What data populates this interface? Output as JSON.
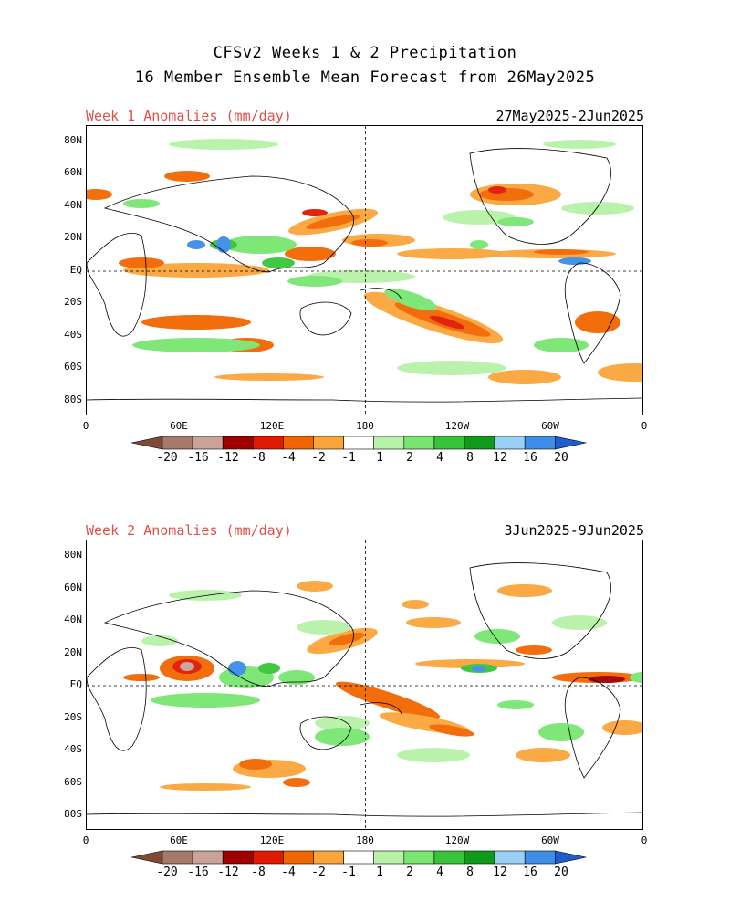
{
  "header": {
    "title_line1": "CFSv2 Weeks 1 & 2 Precipitation",
    "title_line2": "16 Member Ensemble Mean Forecast from 26May2025"
  },
  "panels": [
    {
      "label": "Week 1 Anomalies (mm/day)",
      "dates": "27May2025-2Jun2025"
    },
    {
      "label": "Week 2 Anomalies (mm/day)",
      "dates": "3Jun2025-9Jun2025"
    }
  ],
  "axes": {
    "lat_labels": [
      "80N",
      "60N",
      "40N",
      "20N",
      "EQ",
      "20S",
      "40S",
      "60S",
      "80S"
    ],
    "lon_labels": [
      "0",
      "60E",
      "120E",
      "180",
      "120W",
      "60W",
      "0"
    ]
  },
  "colorbar": {
    "labels": [
      "-20",
      "-16",
      "-12",
      "-8",
      "-4",
      "-2",
      "-1",
      "1",
      "2",
      "4",
      "8",
      "12",
      "16",
      "20"
    ],
    "colors": [
      "#7f4a35",
      "#a67a6a",
      "#c9a29a",
      "#a00000",
      "#e01a00",
      "#f26600",
      "#faa53a",
      "#ffffff",
      "#b7f2a8",
      "#78e670",
      "#38c43a",
      "#109a1a",
      "#9ad0f5",
      "#3c8ee8",
      "#1e5dd0"
    ]
  }
}
